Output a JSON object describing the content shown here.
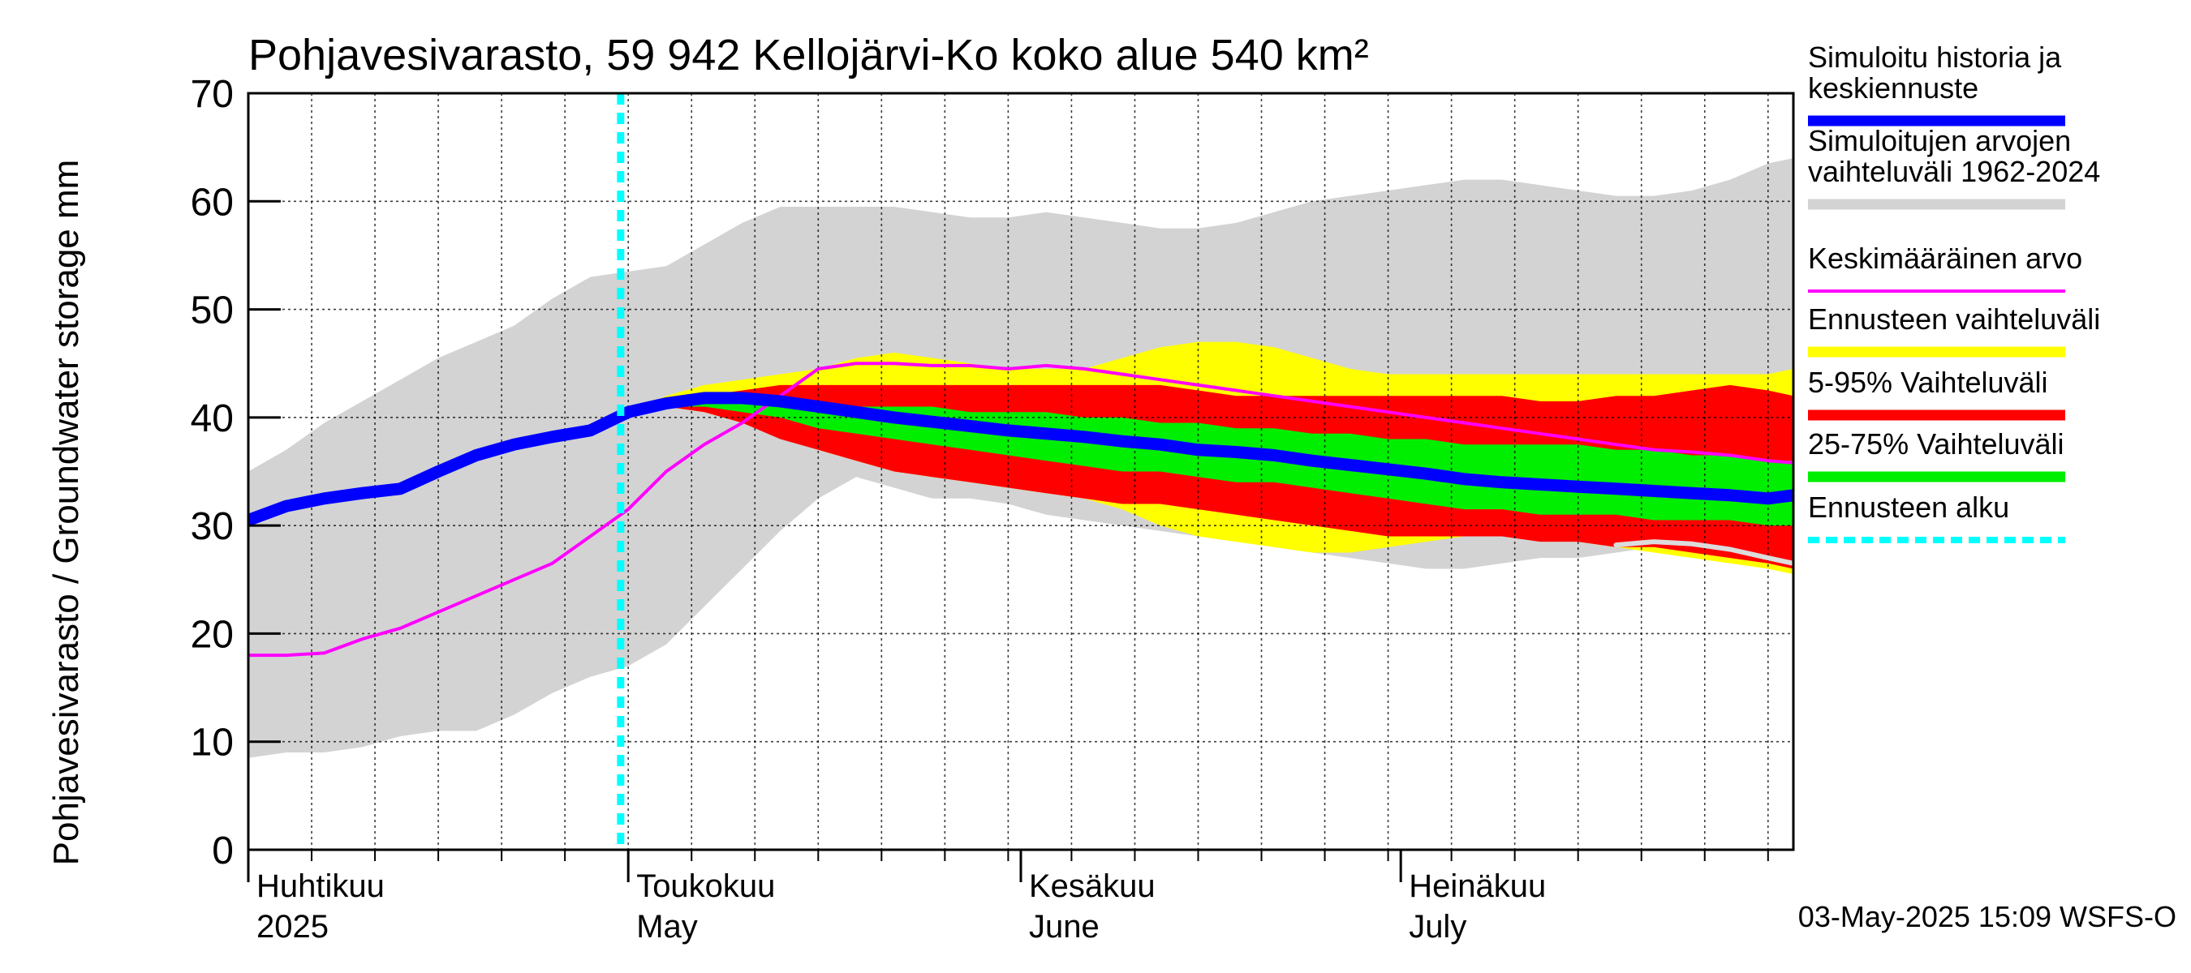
{
  "chart_data": {
    "type": "area",
    "title": "Pohjavesivarasto, 59 942 Kellojärvi-Ko koko alue 540 km²",
    "ylabel": "Pohjavesivarasto / Groundwater storage   mm",
    "ylim": [
      0,
      70
    ],
    "yticks": [
      0,
      10,
      20,
      30,
      40,
      50,
      60,
      70
    ],
    "xlim_day": [
      0,
      122
    ],
    "forecast_start_day": 30,
    "month_labels": [
      {
        "fi": "Huhtikuu",
        "en": "2025",
        "day": 0
      },
      {
        "fi": "Toukokuu",
        "en": "May",
        "day": 30
      },
      {
        "fi": "Kesäkuu",
        "en": "June",
        "day": 61
      },
      {
        "fi": "Heinäkuu",
        "en": "July",
        "day": 91
      }
    ],
    "x_days": [
      0,
      3,
      6,
      9,
      12,
      15,
      18,
      21,
      24,
      27,
      30,
      33,
      36,
      39,
      42,
      45,
      48,
      51,
      54,
      57,
      60,
      63,
      66,
      69,
      72,
      75,
      78,
      81,
      84,
      87,
      90,
      93,
      96,
      99,
      102,
      105,
      108,
      111,
      114,
      117,
      120,
      122
    ],
    "series": [
      {
        "name": "Simuloitujen arvojen vaihteluväli 1962-2024",
        "kind": "band",
        "color": "#d3d3d3",
        "low": [
          8.5,
          9,
          9,
          9.5,
          10.5,
          11,
          11,
          12.5,
          14.5,
          16,
          17,
          19,
          22.5,
          26,
          29.5,
          32.5,
          34.5,
          33.5,
          32.5,
          32.5,
          32,
          31,
          30.5,
          30,
          29.5,
          29,
          28.5,
          28,
          27.5,
          27,
          26.5,
          26,
          26,
          26.5,
          27,
          27,
          27.5,
          28,
          28,
          27.5,
          26.5,
          26
        ],
        "high": [
          35,
          37,
          39.5,
          41.5,
          43.5,
          45.5,
          47,
          48.5,
          51,
          53,
          53.5,
          54,
          56,
          58,
          59.5,
          59.5,
          59.5,
          59.5,
          59,
          58.5,
          58.5,
          59,
          58.5,
          58,
          57.5,
          57.5,
          58,
          59,
          60,
          60.5,
          61,
          61.5,
          62,
          62,
          61.5,
          61,
          60.5,
          60.5,
          61,
          62,
          63.5,
          64
        ]
      },
      {
        "name": "Ennusteen vaihteluväli",
        "kind": "band",
        "color": "#ffff00",
        "low": [
          null,
          null,
          null,
          null,
          null,
          null,
          null,
          null,
          null,
          null,
          40.5,
          41,
          40.5,
          39.5,
          38.5,
          37,
          36,
          35,
          34.5,
          34,
          33.5,
          33,
          32.5,
          31.5,
          30,
          29,
          28.5,
          28,
          27.5,
          27.5,
          28,
          28.5,
          29,
          29,
          29,
          28.5,
          28,
          27.5,
          27,
          26.5,
          26,
          25.5
        ],
        "high": [
          null,
          null,
          null,
          null,
          null,
          null,
          null,
          null,
          null,
          null,
          40.5,
          42,
          43,
          43.5,
          44,
          44.5,
          45.5,
          46,
          45.5,
          45,
          44.5,
          44.5,
          44.5,
          45.5,
          46.5,
          47,
          47,
          46.5,
          45.5,
          44.5,
          44,
          44,
          44,
          44,
          44,
          44,
          44,
          44,
          44,
          44,
          44,
          44.5
        ]
      },
      {
        "name": "5-95% Vaihteluväli",
        "kind": "band",
        "color": "#ff0000",
        "low": [
          null,
          null,
          null,
          null,
          null,
          null,
          null,
          null,
          null,
          null,
          40.5,
          41,
          40.5,
          39.5,
          38,
          37,
          36,
          35,
          34.5,
          34,
          33.5,
          33,
          32.5,
          32,
          32,
          31.5,
          31,
          30.5,
          30,
          29.5,
          29,
          29,
          29,
          29,
          28.5,
          28.5,
          28,
          28,
          27.5,
          27,
          26.5,
          26
        ],
        "high": [
          null,
          null,
          null,
          null,
          null,
          null,
          null,
          null,
          null,
          null,
          40.5,
          41.5,
          42,
          42.5,
          43,
          43,
          43,
          43,
          43,
          43,
          43,
          43,
          43,
          43,
          43,
          42.5,
          42,
          42,
          42,
          42,
          42,
          42,
          42,
          42,
          41.5,
          41.5,
          42,
          42,
          42.5,
          43,
          42.5,
          42
        ]
      },
      {
        "name": "25-75% Vaihteluväli",
        "kind": "band",
        "color": "#00ee00",
        "low": [
          null,
          null,
          null,
          null,
          null,
          null,
          null,
          null,
          null,
          null,
          40.5,
          41,
          41,
          40.5,
          40,
          39,
          38.5,
          38,
          37.5,
          37,
          36.5,
          36,
          35.5,
          35,
          35,
          34.5,
          34,
          34,
          33.5,
          33,
          32.5,
          32,
          31.5,
          31.5,
          31,
          31,
          31,
          30.5,
          30.5,
          30.5,
          30,
          30
        ],
        "high": [
          null,
          null,
          null,
          null,
          null,
          null,
          null,
          null,
          null,
          null,
          40.5,
          41.5,
          41.5,
          41.5,
          41.5,
          41.5,
          41,
          41,
          41,
          40.5,
          40.5,
          40.5,
          40,
          40,
          39.5,
          39.5,
          39,
          39,
          38.5,
          38.5,
          38,
          38,
          37.5,
          37.5,
          37.5,
          37.5,
          37,
          37,
          36.5,
          36.5,
          36,
          36
        ]
      },
      {
        "name": "Keskimääräinen arvo",
        "kind": "line",
        "color": "#ff00ff",
        "values": [
          18,
          18,
          18.2,
          19.5,
          20.5,
          22,
          23.5,
          25,
          26.5,
          29,
          31.5,
          35,
          37.5,
          39.5,
          42,
          44.5,
          45,
          45,
          44.8,
          44.8,
          44.5,
          44.8,
          44.5,
          44,
          43.5,
          43,
          42.5,
          42,
          41.5,
          41,
          40.5,
          40,
          39.5,
          39,
          38.5,
          38,
          37.5,
          37,
          36.8,
          36.5,
          36,
          35.8
        ]
      },
      {
        "name": "Simuloitu historia ja keskiennuste",
        "kind": "line",
        "color": "#0000ff",
        "values": [
          30.5,
          31.8,
          32.5,
          33,
          33.4,
          35,
          36.5,
          37.5,
          38.2,
          38.8,
          40.5,
          41.3,
          41.8,
          41.8,
          41.5,
          41,
          40.5,
          40,
          39.6,
          39.2,
          38.8,
          38.5,
          38.2,
          37.8,
          37.5,
          37,
          36.8,
          36.5,
          36,
          35.6,
          35.2,
          34.8,
          34.3,
          34,
          33.8,
          33.6,
          33.4,
          33.2,
          33,
          32.8,
          32.5,
          32.8
        ]
      },
      {
        "name": "Simuloitu alaraja",
        "kind": "line",
        "color": "#dcdcdc",
        "values": [
          null,
          null,
          null,
          null,
          null,
          null,
          null,
          null,
          null,
          null,
          null,
          null,
          null,
          null,
          null,
          null,
          null,
          null,
          null,
          null,
          null,
          null,
          null,
          null,
          null,
          null,
          null,
          null,
          null,
          null,
          null,
          null,
          null,
          null,
          null,
          null,
          28.2,
          28.5,
          28.3,
          27.8,
          27,
          26.5
        ]
      }
    ],
    "legend": [
      {
        "label": "Simuloitu historia ja keskiennuste",
        "color": "#0000ff",
        "style": "thick"
      },
      {
        "label": "Simuloitujen arvojen vaihteluväli 1962-2024",
        "color": "#d3d3d3",
        "style": "thick"
      },
      {
        "label": "Keskimääräinen arvo",
        "color": "#ff00ff",
        "style": "thin"
      },
      {
        "label": "Ennusteen vaihteluväli",
        "color": "#ffff00",
        "style": "thick"
      },
      {
        "label": "5-95% Vaihteluväli",
        "color": "#ff0000",
        "style": "thick"
      },
      {
        "label": "25-75% Vaihteluväli",
        "color": "#00ee00",
        "style": "thick"
      },
      {
        "label": "Ennusteen alku",
        "color": "#00ffff",
        "style": "dotted"
      }
    ],
    "footer": "03-May-2025 15:09 WSFS-O"
  }
}
